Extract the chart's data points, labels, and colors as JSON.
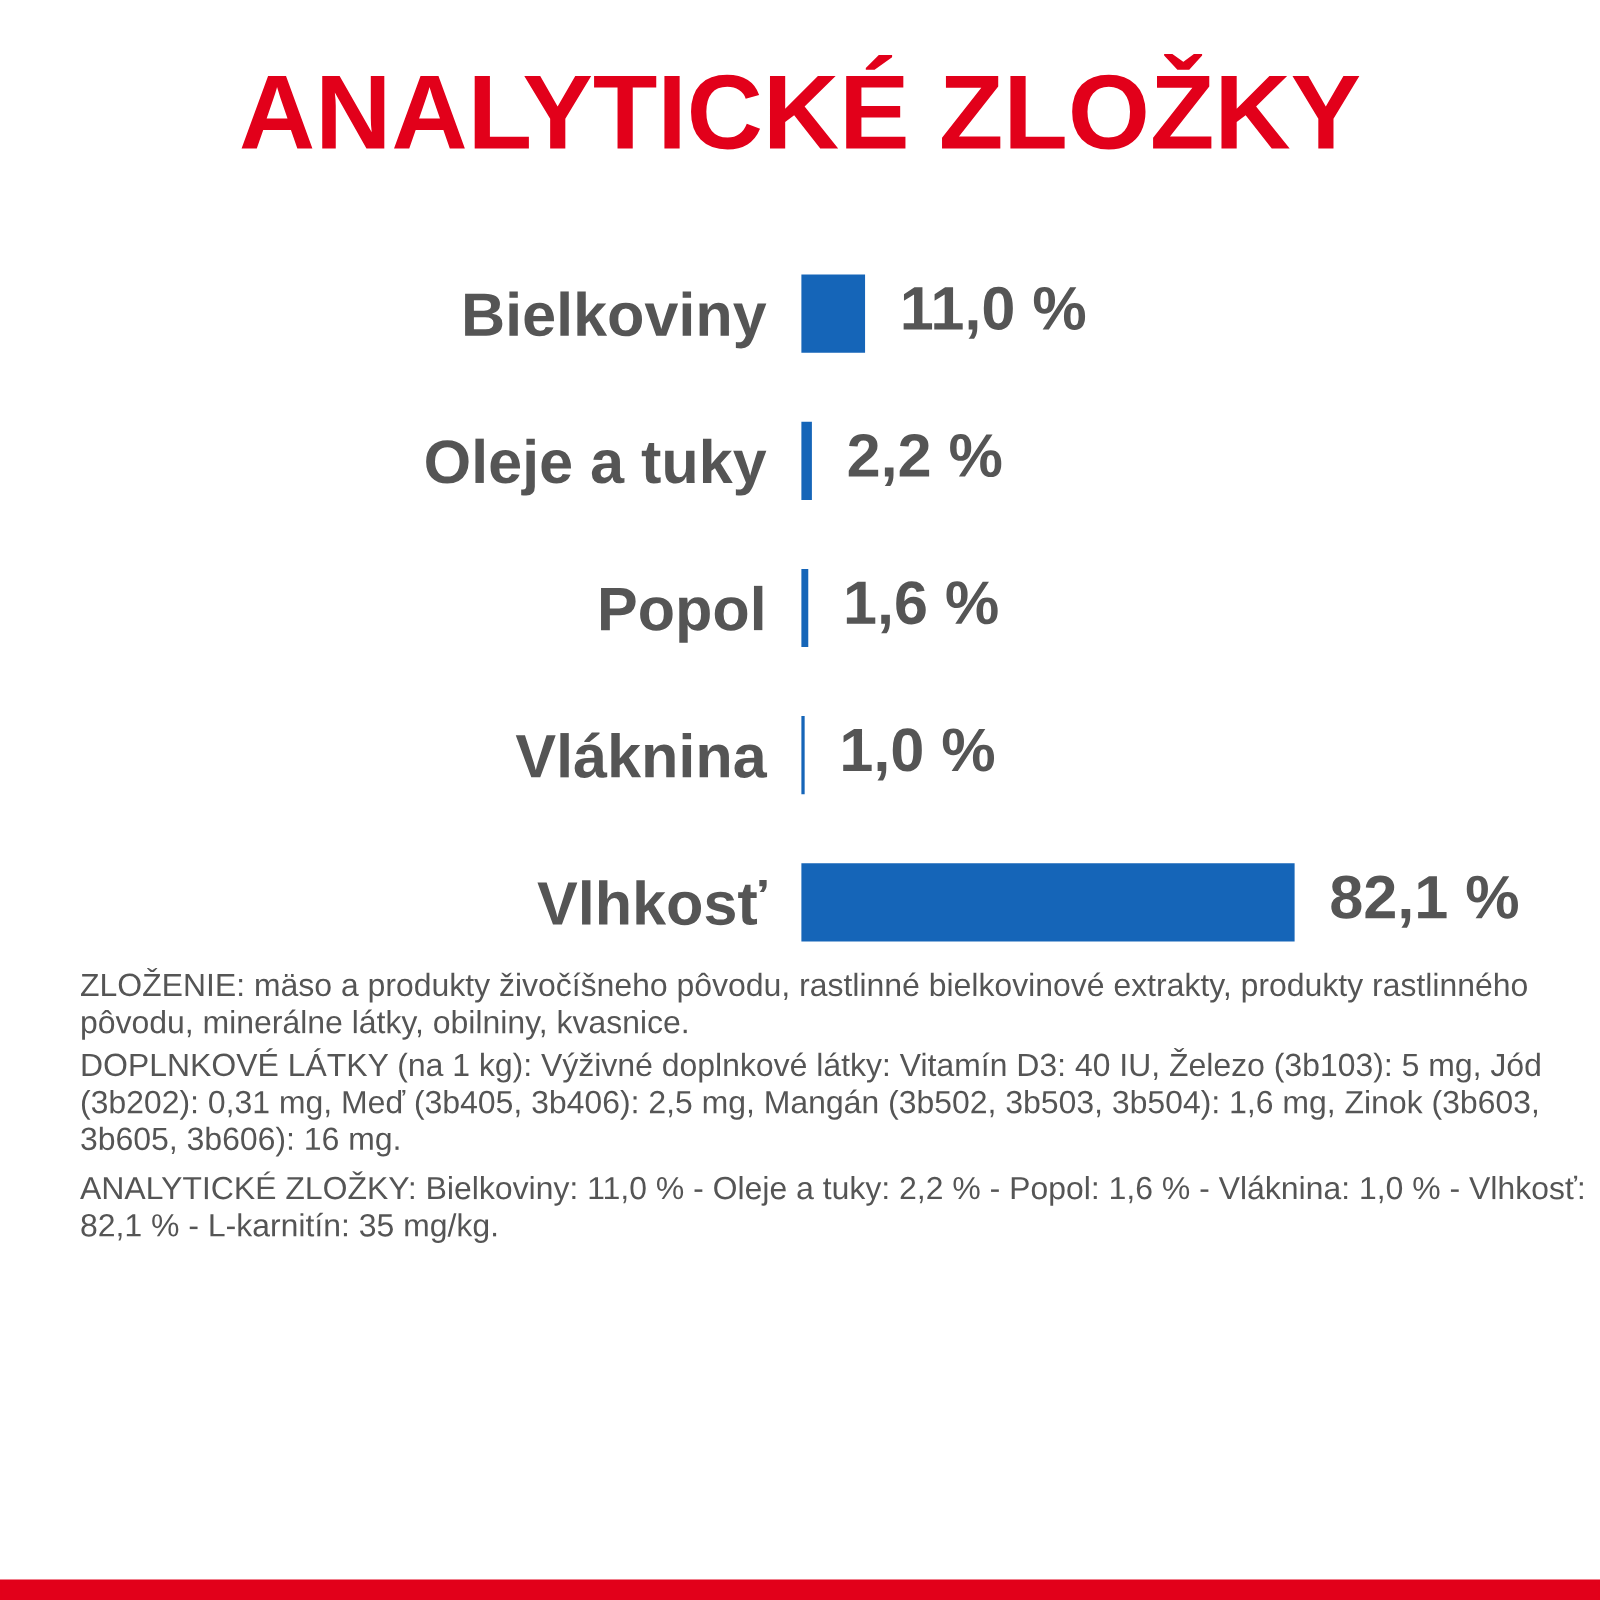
{
  "chart_data": {
    "type": "bar",
    "orientation": "horizontal",
    "title": "ANALYTICKÉ ZLOŽKY",
    "categories": [
      "Bielkoviny",
      "Oleje a tuky",
      "Popol",
      "Vláknina",
      "Vlhkosť"
    ],
    "values": [
      11.0,
      2.2,
      1.6,
      1.0,
      82.1
    ],
    "value_labels": [
      "11,0 %",
      "2,2 %",
      "1,6 %",
      "1,0 %",
      "82,1 %"
    ],
    "color": "#1565b8",
    "tick_labels": "y",
    "grid": false,
    "legend": false,
    "annotations": [
      "ZLOŽENIE: mäso a produkty živočíšneho pôvodu, rastlinné bielkovinové extrakty, produkty rastlinného pôvodu, minerálne látky, obilniny, kvasnice.",
      "DOPLNKOVÉ LÁTKY (na 1 kg): Výživné doplnkové látky: Vitamín D3: 40 IU, Železo (3b103): 5 mg, Jód (3b202): 0,31 mg, Meď (3b405, 3b406): 2,5 mg, Mangán (3b502, 3b503, 3b504): 1,6 mg, Zinok (3b603, 3b605, 3b606): 16 mg.",
      "ANALYTICKÉ ZLOŽKY: Bielkoviny: 11,0 % - Oleje a tuky: 2,2 % - Popol: 1,6 % - Vláknina: 1,0 % - Vlhkosť: 82,1 % - L-karnitín: 35 mg/kg."
    ]
  }
}
